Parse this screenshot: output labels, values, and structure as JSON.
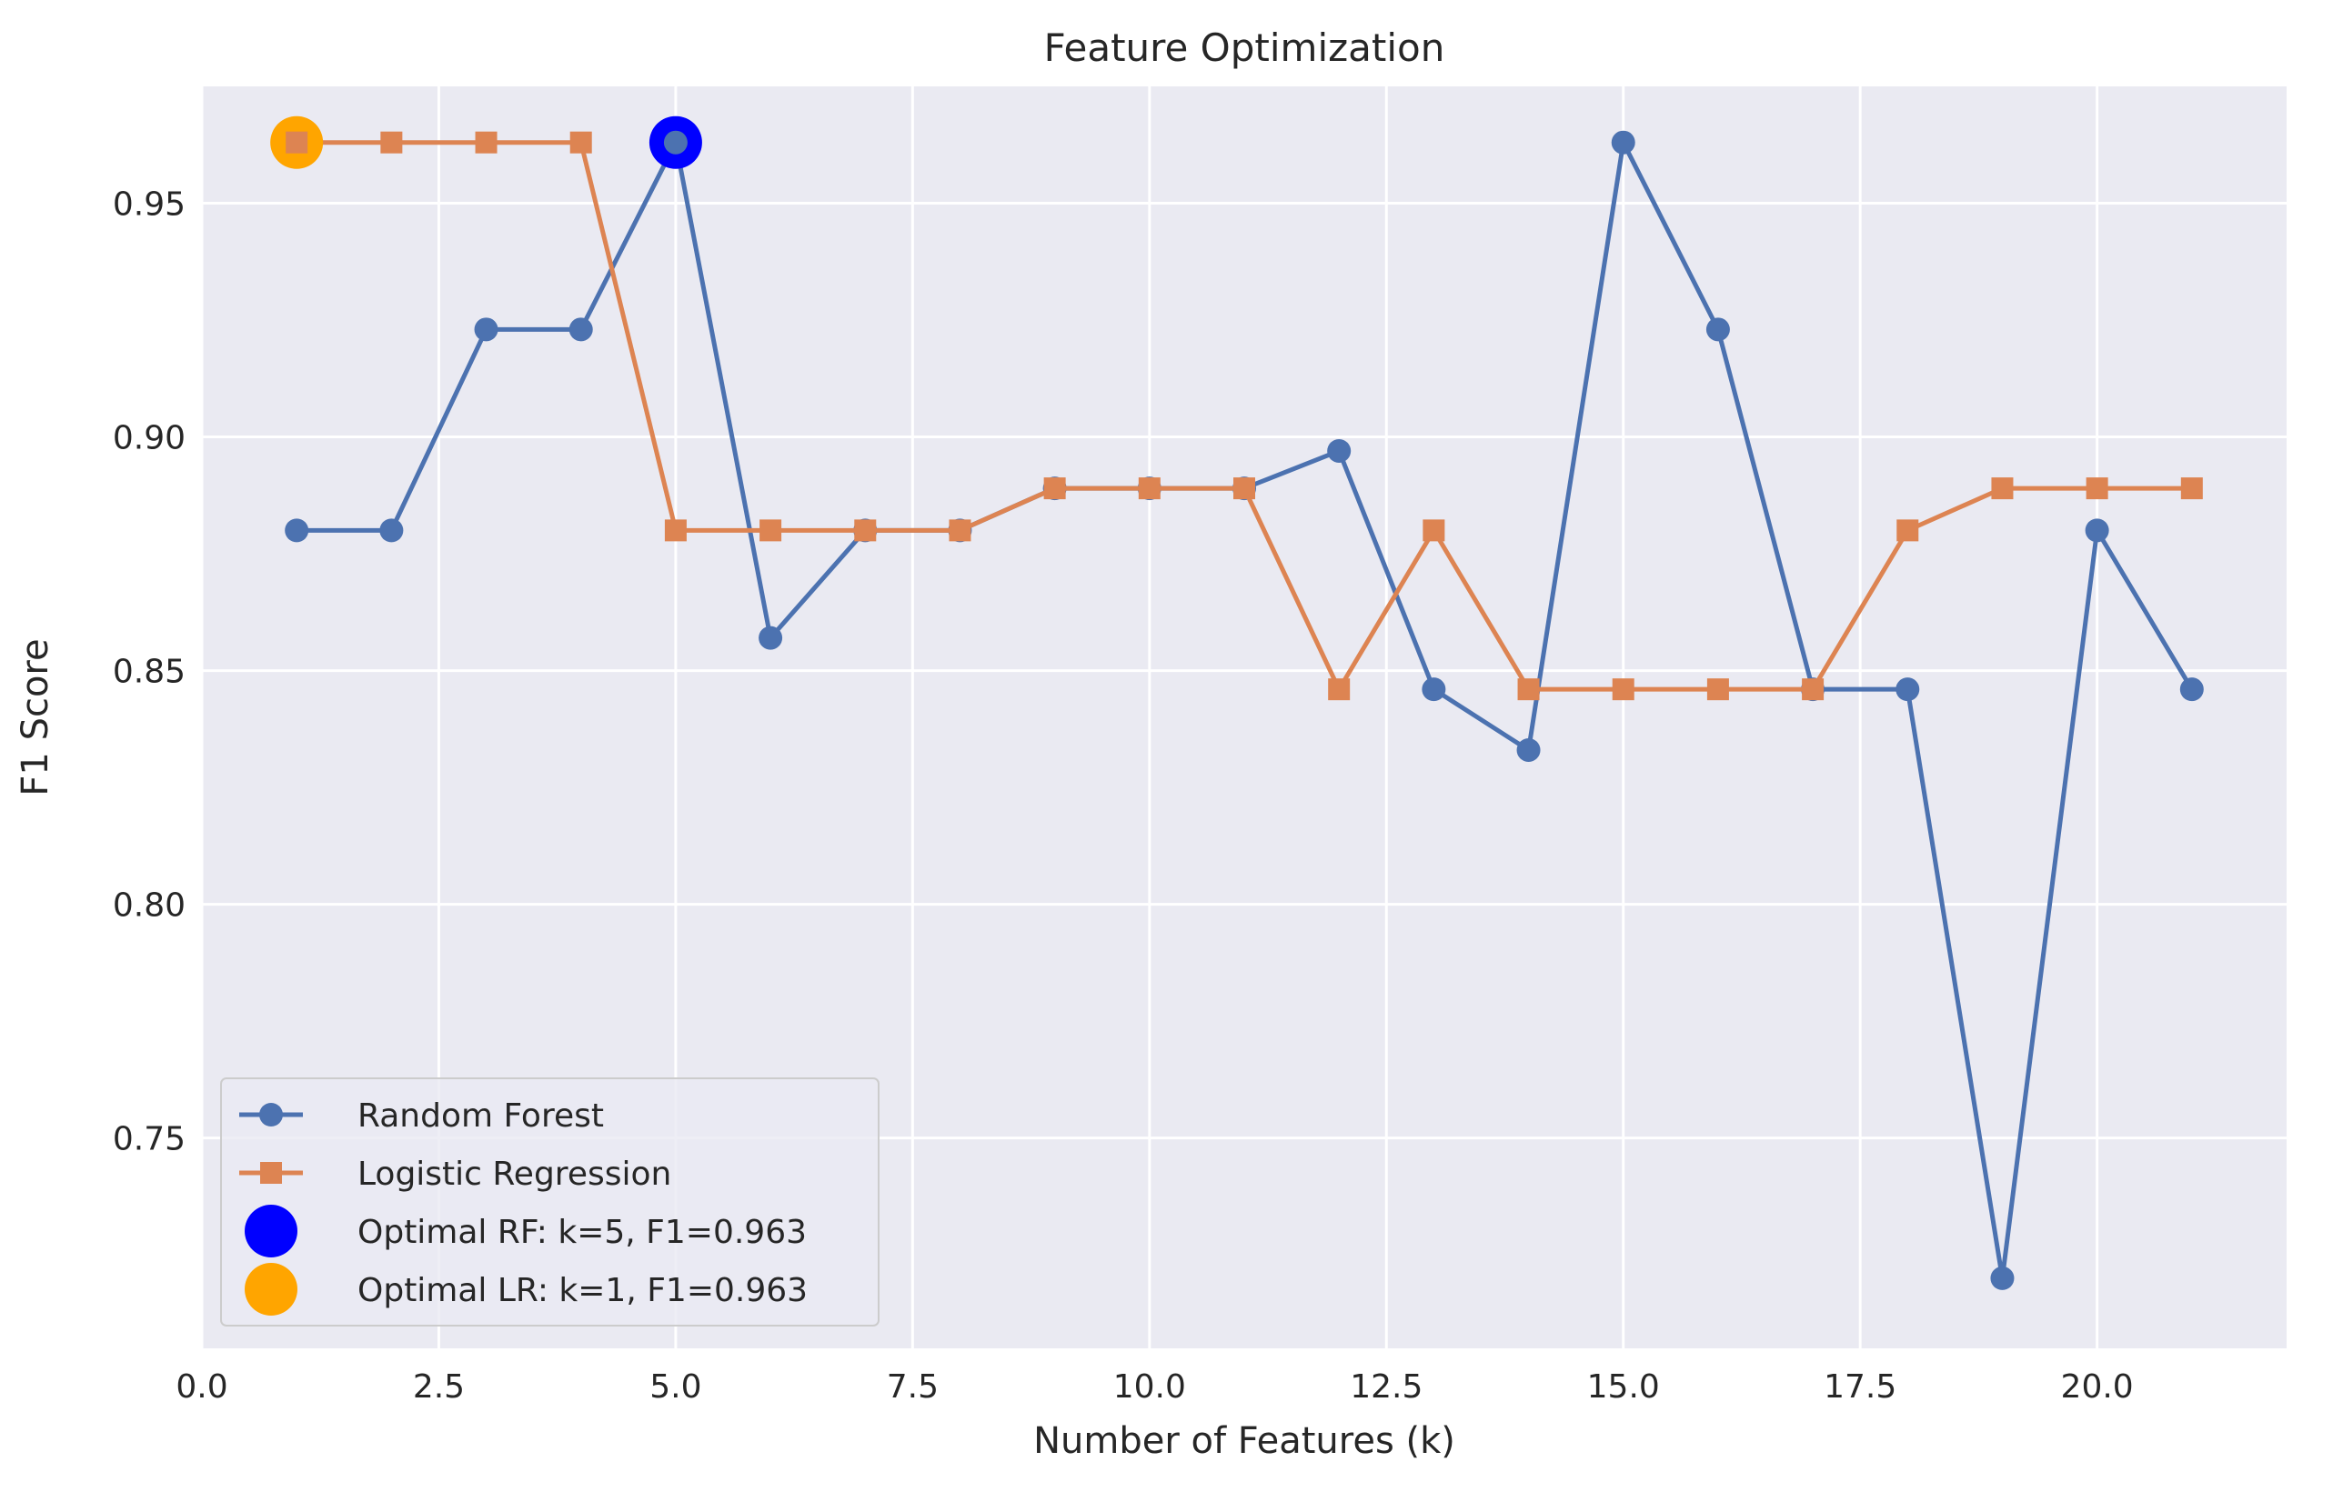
{
  "chart_data": {
    "type": "line",
    "title": "Feature Optimization",
    "xlabel": "Number of Features (k)",
    "ylabel": "F1 Score",
    "xlim": [
      0,
      22
    ],
    "ylim": [
      0.705,
      0.975
    ],
    "xticks": [
      0.0,
      2.5,
      5.0,
      7.5,
      10.0,
      12.5,
      15.0,
      17.5,
      20.0
    ],
    "xtick_labels": [
      "0.0",
      "2.5",
      "5.0",
      "7.5",
      "10.0",
      "12.5",
      "15.0",
      "17.5",
      "20.0"
    ],
    "yticks": [
      0.75,
      0.8,
      0.85,
      0.9,
      0.95
    ],
    "ytick_labels": [
      "0.75",
      "0.80",
      "0.85",
      "0.90",
      "0.95"
    ],
    "grid": true,
    "legend_position": "lower-left",
    "x": [
      1,
      2,
      3,
      4,
      5,
      6,
      7,
      8,
      9,
      10,
      11,
      12,
      13,
      14,
      15,
      16,
      17,
      18,
      19,
      20,
      21
    ],
    "series": [
      {
        "name": "Random Forest",
        "marker": "circle",
        "color": "#4c72b0",
        "values": [
          0.88,
          0.88,
          0.923,
          0.923,
          0.963,
          0.857,
          0.88,
          0.88,
          0.889,
          0.889,
          0.889,
          0.897,
          0.846,
          0.833,
          0.963,
          0.923,
          0.846,
          0.846,
          0.72,
          0.88,
          0.846
        ]
      },
      {
        "name": "Logistic Regression",
        "marker": "square",
        "color": "#dd8452",
        "values": [
          0.963,
          0.963,
          0.963,
          0.963,
          0.88,
          0.88,
          0.88,
          0.88,
          0.889,
          0.889,
          0.889,
          0.846,
          0.88,
          0.846,
          0.846,
          0.846,
          0.846,
          0.88,
          0.889,
          0.889,
          0.889
        ]
      }
    ],
    "highlights": [
      {
        "name": "Optimal RF: k=5, F1=0.963",
        "x": 5,
        "y": 0.963,
        "color": "#0000ff"
      },
      {
        "name": "Optimal LR: k=1, F1=0.963",
        "x": 1,
        "y": 0.963,
        "color": "#ffa500"
      }
    ],
    "colors": {
      "plot_background": "#eaeaf2",
      "grid": "#ffffff",
      "legend_background": "#eaeaf2",
      "legend_border": "#cccccc"
    }
  }
}
